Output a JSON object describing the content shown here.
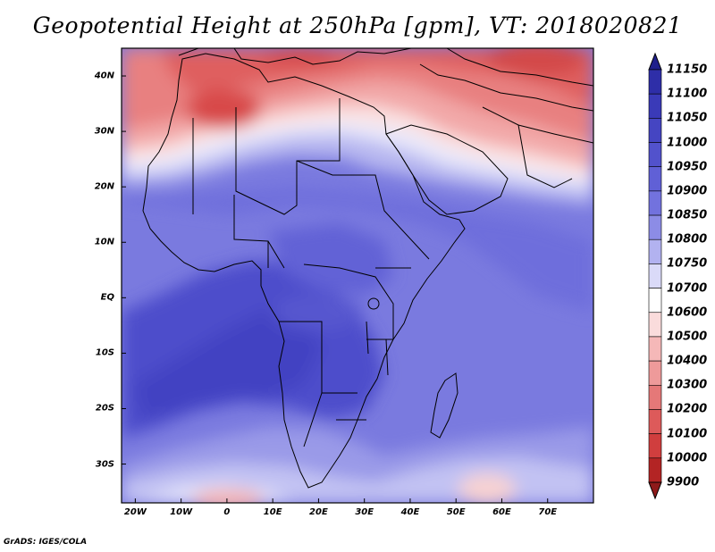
{
  "title": "Geopotential Height at 250hPa [gpm], VT: 2018020821",
  "credit": "GrADS: IGES/COLA",
  "map": {
    "lon_range": [
      -23,
      80
    ],
    "lat_range": [
      -37,
      45
    ],
    "lat_ticks": [
      {
        "value": 40,
        "label": "40N"
      },
      {
        "value": 30,
        "label": "30N"
      },
      {
        "value": 20,
        "label": "20N"
      },
      {
        "value": 10,
        "label": "10N"
      },
      {
        "value": 0,
        "label": "EQ"
      },
      {
        "value": -10,
        "label": "10S"
      },
      {
        "value": -20,
        "label": "20S"
      },
      {
        "value": -30,
        "label": "30S"
      }
    ],
    "lon_ticks": [
      {
        "value": -20,
        "label": "20W"
      },
      {
        "value": -10,
        "label": "10W"
      },
      {
        "value": 0,
        "label": "0"
      },
      {
        "value": 10,
        "label": "10E"
      },
      {
        "value": 20,
        "label": "20E"
      },
      {
        "value": 30,
        "label": "30E"
      },
      {
        "value": 40,
        "label": "40E"
      },
      {
        "value": 50,
        "label": "50E"
      },
      {
        "value": 60,
        "label": "60E"
      },
      {
        "value": 70,
        "label": "70E"
      }
    ]
  },
  "colorbar": {
    "levels": [
      "11150",
      "11100",
      "11050",
      "11000",
      "10950",
      "10900",
      "10850",
      "10800",
      "10750",
      "10700",
      "10600",
      "10500",
      "10400",
      "10300",
      "10200",
      "10100",
      "10000",
      "9900"
    ],
    "colors": [
      "#1f1f8c",
      "#2e2ea8",
      "#3a3ab8",
      "#4545c2",
      "#5252cc",
      "#6060d6",
      "#7272de",
      "#8c8ce6",
      "#b2b2f0",
      "#dadaf8",
      "#ffffff",
      "#fadcdc",
      "#f5b8b8",
      "#ee9a9a",
      "#e57878",
      "#dd5a5a",
      "#d03e3e",
      "#b32424",
      "#8e1a1a"
    ]
  }
}
